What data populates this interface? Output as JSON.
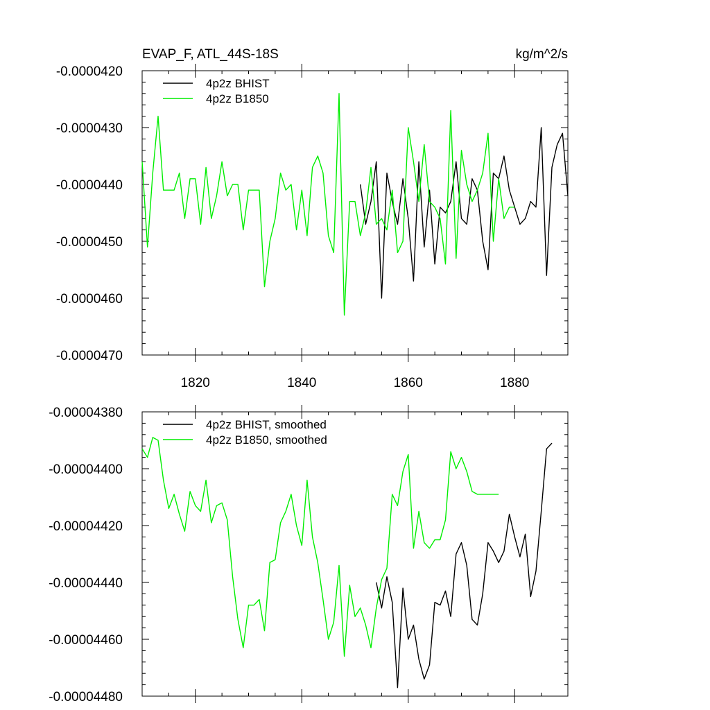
{
  "chart_data": [
    {
      "type": "line",
      "title_left": "EVAP_F, ATL_44S-18S",
      "title_right": "kg/m^2/s",
      "xlim": [
        1810,
        1890
      ],
      "ylim": [
        -4.7e-05,
        -4.2e-05
      ],
      "yticks": [
        -4.7e-05,
        -4.6e-05,
        -4.5e-05,
        -4.4e-05,
        -4.3e-05,
        -4.2e-05
      ],
      "ytick_labels": [
        "-0.0000470",
        "-0.0000460",
        "-0.0000450",
        "-0.0000440",
        "-0.0000430",
        "-0.0000420"
      ],
      "xticks": [
        1820,
        1840,
        1860,
        1880
      ],
      "xtick_labels": [
        "1820",
        "1840",
        "1860",
        "1880"
      ],
      "show_xtick_labels": true,
      "legend_position": "top-left",
      "series": [
        {
          "name": "4p2z BHIST",
          "color": "#000000",
          "x": [
            1851,
            1852,
            1853,
            1854,
            1855,
            1856,
            1857,
            1858,
            1859,
            1860,
            1861,
            1862,
            1863,
            1864,
            1865,
            1866,
            1867,
            1868,
            1869,
            1870,
            1871,
            1872,
            1873,
            1874,
            1875,
            1876,
            1877,
            1878,
            1879,
            1880,
            1881,
            1882,
            1883,
            1884,
            1885,
            1886,
            1887,
            1888,
            1889,
            1890
          ],
          "y": [
            -4.4e-05,
            -4.47e-05,
            -4.43e-05,
            -4.36e-05,
            -4.6e-05,
            -4.38e-05,
            -4.43e-05,
            -4.47e-05,
            -4.39e-05,
            -4.46e-05,
            -4.57e-05,
            -4.36e-05,
            -4.51e-05,
            -4.41e-05,
            -4.54e-05,
            -4.44e-05,
            -4.45e-05,
            -4.43e-05,
            -4.36e-05,
            -4.46e-05,
            -4.47e-05,
            -4.39e-05,
            -4.41e-05,
            -4.5e-05,
            -4.55e-05,
            -4.38e-05,
            -4.39e-05,
            -4.35e-05,
            -4.41e-05,
            -4.44e-05,
            -4.47e-05,
            -4.46e-05,
            -4.43e-05,
            -4.44e-05,
            -4.3e-05,
            -4.56e-05,
            -4.37e-05,
            -4.33e-05,
            -4.31e-05,
            -4.42e-05
          ]
        },
        {
          "name": "4p2z B1850",
          "color": "#00ee00",
          "x": [
            1810,
            1811,
            1812,
            1813,
            1814,
            1815,
            1816,
            1817,
            1818,
            1819,
            1820,
            1821,
            1822,
            1823,
            1824,
            1825,
            1826,
            1827,
            1828,
            1829,
            1830,
            1831,
            1832,
            1833,
            1834,
            1835,
            1836,
            1837,
            1838,
            1839,
            1840,
            1841,
            1842,
            1843,
            1844,
            1845,
            1846,
            1847,
            1848,
            1849,
            1850,
            1851,
            1852,
            1853,
            1854,
            1855,
            1856,
            1857,
            1858,
            1859,
            1860,
            1861,
            1862,
            1863,
            1864,
            1865,
            1866,
            1867,
            1868,
            1869,
            1870,
            1871,
            1872,
            1873,
            1874,
            1875,
            1876,
            1877,
            1878,
            1879,
            1880
          ],
          "y": [
            -4.36e-05,
            -4.51e-05,
            -4.38e-05,
            -4.28e-05,
            -4.41e-05,
            -4.41e-05,
            -4.41e-05,
            -4.38e-05,
            -4.46e-05,
            -4.39e-05,
            -4.39e-05,
            -4.47e-05,
            -4.37e-05,
            -4.46e-05,
            -4.42e-05,
            -4.36e-05,
            -4.42e-05,
            -4.4e-05,
            -4.4e-05,
            -4.48e-05,
            -4.41e-05,
            -4.41e-05,
            -4.41e-05,
            -4.58e-05,
            -4.5e-05,
            -4.46e-05,
            -4.38e-05,
            -4.41e-05,
            -4.4e-05,
            -4.48e-05,
            -4.41e-05,
            -4.49e-05,
            -4.37e-05,
            -4.35e-05,
            -4.38e-05,
            -4.49e-05,
            -4.52e-05,
            -4.24e-05,
            -4.63e-05,
            -4.43e-05,
            -4.43e-05,
            -4.49e-05,
            -4.45e-05,
            -4.37e-05,
            -4.47e-05,
            -4.46e-05,
            -4.48e-05,
            -4.41e-05,
            -4.52e-05,
            -4.5e-05,
            -4.3e-05,
            -4.36e-05,
            -4.43e-05,
            -4.33e-05,
            -4.43e-05,
            -4.44e-05,
            -4.46e-05,
            -4.54e-05,
            -4.27e-05,
            -4.53e-05,
            -4.34e-05,
            -4.4e-05,
            -4.43e-05,
            -4.41e-05,
            -4.38e-05,
            -4.31e-05,
            -4.5e-05,
            -4.39e-05,
            -4.46e-05,
            -4.44e-05,
            -4.44e-05
          ]
        }
      ]
    },
    {
      "type": "line",
      "title_left": "",
      "title_right": "",
      "xlim": [
        1810,
        1890
      ],
      "ylim": [
        -4.48e-05,
        -4.38e-05
      ],
      "yticks": [
        -4.48e-05,
        -4.46e-05,
        -4.44e-05,
        -4.42e-05,
        -4.4e-05,
        -4.38e-05
      ],
      "ytick_labels": [
        "-0.00004480",
        "-0.00004460",
        "-0.00004440",
        "-0.00004420",
        "-0.00004400",
        "-0.00004380"
      ],
      "xticks": [
        1820,
        1840,
        1860,
        1880
      ],
      "xtick_labels": [],
      "show_xtick_labels": false,
      "legend_position": "top-left",
      "series": [
        {
          "name": "4p2z BHIST, smoothed",
          "color": "#000000",
          "x": [
            1854,
            1855,
            1856,
            1857,
            1858,
            1859,
            1860,
            1861,
            1862,
            1863,
            1864,
            1865,
            1866,
            1867,
            1868,
            1869,
            1870,
            1871,
            1872,
            1873,
            1874,
            1875,
            1876,
            1877,
            1878,
            1879,
            1880,
            1881,
            1882,
            1883,
            1884,
            1885,
            1886,
            1887
          ],
          "y": [
            -4.44e-05,
            -4.449e-05,
            -4.438e-05,
            -4.447e-05,
            -4.477e-05,
            -4.442e-05,
            -4.46e-05,
            -4.455e-05,
            -4.467e-05,
            -4.474e-05,
            -4.469e-05,
            -4.447e-05,
            -4.448e-05,
            -4.443e-05,
            -4.452e-05,
            -4.43e-05,
            -4.426e-05,
            -4.434e-05,
            -4.453e-05,
            -4.455e-05,
            -4.444e-05,
            -4.426e-05,
            -4.429e-05,
            -4.433e-05,
            -4.429e-05,
            -4.416e-05,
            -4.424e-05,
            -4.431e-05,
            -4.423e-05,
            -4.445e-05,
            -4.436e-05,
            -4.415e-05,
            -4.393e-05,
            -4.391e-05
          ]
        },
        {
          "name": "4p2z B1850, smoothed",
          "color": "#00ee00",
          "x": [
            1810,
            1811,
            1812,
            1813,
            1814,
            1815,
            1816,
            1817,
            1818,
            1819,
            1820,
            1821,
            1822,
            1823,
            1824,
            1825,
            1826,
            1827,
            1828,
            1829,
            1830,
            1831,
            1832,
            1833,
            1834,
            1835,
            1836,
            1837,
            1838,
            1839,
            1840,
            1841,
            1842,
            1843,
            1844,
            1845,
            1846,
            1847,
            1848,
            1849,
            1850,
            1851,
            1852,
            1853,
            1854,
            1855,
            1856,
            1857,
            1858,
            1859,
            1860,
            1861,
            1862,
            1863,
            1864,
            1865,
            1866,
            1867,
            1868,
            1869,
            1870,
            1871,
            1872,
            1873,
            1874,
            1875,
            1876,
            1877
          ],
          "y": [
            -4.393e-05,
            -4.396e-05,
            -4.389e-05,
            -4.39e-05,
            -4.404e-05,
            -4.414e-05,
            -4.409e-05,
            -4.416e-05,
            -4.422e-05,
            -4.408e-05,
            -4.413e-05,
            -4.415e-05,
            -4.404e-05,
            -4.419e-05,
            -4.413e-05,
            -4.412e-05,
            -4.418e-05,
            -4.438e-05,
            -4.453e-05,
            -4.463e-05,
            -4.448e-05,
            -4.448e-05,
            -4.446e-05,
            -4.457e-05,
            -4.433e-05,
            -4.432e-05,
            -4.419e-05,
            -4.415e-05,
            -4.409e-05,
            -4.42e-05,
            -4.427e-05,
            -4.404e-05,
            -4.424e-05,
            -4.433e-05,
            -4.446e-05,
            -4.46e-05,
            -4.454e-05,
            -4.434e-05,
            -4.466e-05,
            -4.441e-05,
            -4.452e-05,
            -4.449e-05,
            -4.455e-05,
            -4.463e-05,
            -4.449e-05,
            -4.439e-05,
            -4.435e-05,
            -4.409e-05,
            -4.413e-05,
            -4.401e-05,
            -4.395e-05,
            -4.428e-05,
            -4.415e-05,
            -4.426e-05,
            -4.428e-05,
            -4.425e-05,
            -4.425e-05,
            -4.418e-05,
            -4.394e-05,
            -4.4e-05,
            -4.396e-05,
            -4.401e-05,
            -4.408e-05,
            -4.409e-05,
            -4.409e-05,
            -4.409e-05,
            -4.409e-05,
            -4.409e-05
          ]
        }
      ]
    }
  ]
}
